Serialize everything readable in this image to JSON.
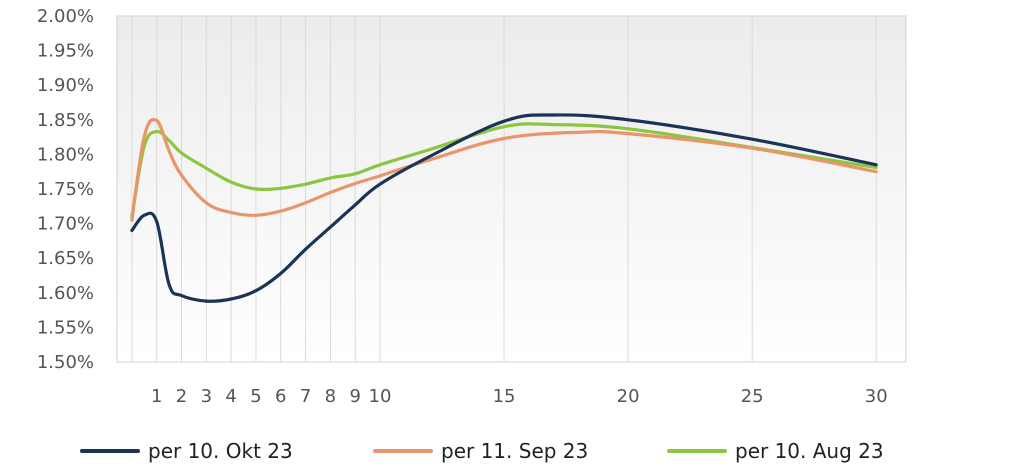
{
  "chart_data": {
    "type": "line",
    "title": "",
    "xlabel": "",
    "ylabel": "",
    "x_ticks": [
      1,
      2,
      3,
      4,
      5,
      6,
      7,
      8,
      9,
      10,
      15,
      20,
      25,
      30
    ],
    "y_ticks": [
      "1.50%",
      "1.55%",
      "1.60%",
      "1.65%",
      "1.70%",
      "1.75%",
      "1.80%",
      "1.85%",
      "1.90%",
      "1.95%",
      "2.00%"
    ],
    "ylim": [
      1.5,
      2.0
    ],
    "xlim": [
      -0.6,
      31.2
    ],
    "grid": "vertical",
    "legend_position": "bottom",
    "series": [
      {
        "name": "per 10. Okt 23",
        "color": "#1a3356",
        "x": [
          0,
          0.5,
          1,
          1.5,
          2,
          3,
          4,
          5,
          6,
          7,
          8,
          9,
          10,
          12,
          15,
          17,
          20,
          25,
          30
        ],
        "y": [
          1.69,
          1.712,
          1.703,
          1.612,
          1.596,
          1.588,
          1.591,
          1.603,
          1.628,
          1.663,
          1.695,
          1.727,
          1.757,
          1.797,
          1.848,
          1.857,
          1.85,
          1.822,
          1.785
        ]
      },
      {
        "name": "per 11. Sep 23",
        "color": "#e8956a",
        "x": [
          0,
          0.5,
          1,
          1.5,
          2,
          3,
          4,
          5,
          6,
          7,
          8,
          9,
          10,
          12,
          15,
          18,
          20,
          25,
          30
        ],
        "y": [
          1.705,
          1.826,
          1.849,
          1.805,
          1.77,
          1.73,
          1.716,
          1.712,
          1.718,
          1.73,
          1.745,
          1.758,
          1.769,
          1.792,
          1.823,
          1.832,
          1.83,
          1.809,
          1.775
        ]
      },
      {
        "name": "per 10. Aug 23",
        "color": "#8cc63f",
        "x": [
          0,
          0.5,
          1,
          1.5,
          2,
          3,
          4,
          5,
          6,
          7,
          8,
          9,
          10,
          12,
          15,
          17,
          20,
          25,
          30
        ],
        "y": [
          1.71,
          1.812,
          1.833,
          1.82,
          1.802,
          1.78,
          1.76,
          1.75,
          1.751,
          1.757,
          1.766,
          1.772,
          1.785,
          1.807,
          1.84,
          1.843,
          1.837,
          1.81,
          1.781
        ]
      }
    ]
  }
}
